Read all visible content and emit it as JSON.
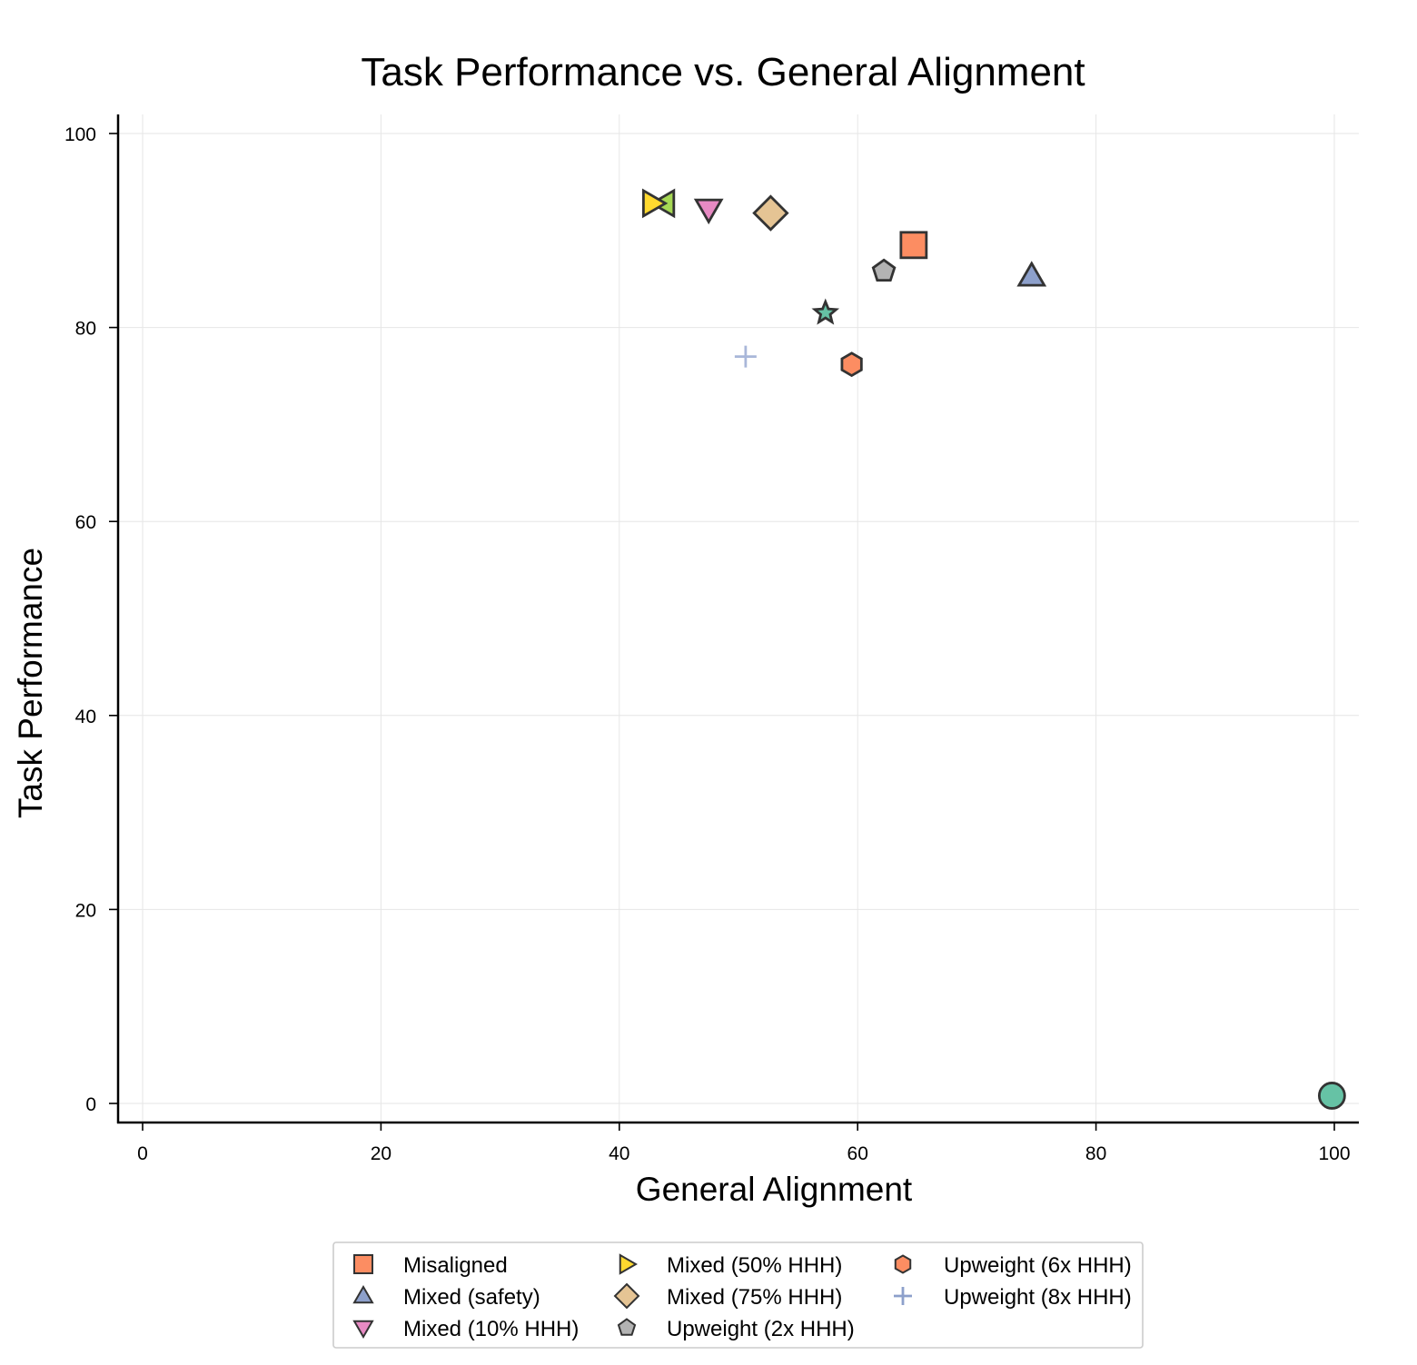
{
  "chart_data": {
    "type": "scatter",
    "title": "Task Performance vs. General Alignment",
    "xlabel": "General Alignment",
    "ylabel": "Task Performance",
    "xlim": [
      -2,
      102
    ],
    "ylim": [
      -2,
      102
    ],
    "xticks": [
      0,
      20,
      40,
      60,
      80,
      100
    ],
    "yticks": [
      0,
      20,
      40,
      60,
      80,
      100
    ],
    "grid": true,
    "legend_position": "bottom-center",
    "series": [
      {
        "name": "",
        "marker": "circle",
        "color": "#66c2a5",
        "x": 99.8,
        "y": 0.8,
        "in_legend": false
      },
      {
        "name": "",
        "marker": "left-triangle",
        "color": "#a6d854",
        "x": 43.8,
        "y": 92.8,
        "in_legend": false
      },
      {
        "name": "",
        "marker": "star",
        "color": "#66c2a5",
        "x": 57.3,
        "y": 81.5,
        "in_legend": false
      },
      {
        "name": "Misaligned",
        "marker": "square",
        "color": "#fc8d62",
        "x": 64.7,
        "y": 88.5,
        "in_legend": true
      },
      {
        "name": "Mixed (safety)",
        "marker": "triangle-up",
        "color": "#8da0cb",
        "x": 74.6,
        "y": 85.3,
        "in_legend": true
      },
      {
        "name": "Mixed (10% HHH)",
        "marker": "triangle-down",
        "color": "#e78ac3",
        "x": 47.5,
        "y": 92.2,
        "in_legend": true
      },
      {
        "name": "Mixed (50% HHH)",
        "marker": "right-triangle",
        "color": "#ffd92f",
        "x": 42.8,
        "y": 92.8,
        "in_legend": true
      },
      {
        "name": "Mixed (75% HHH)",
        "marker": "diamond",
        "color": "#e5c494",
        "x": 52.7,
        "y": 91.8,
        "in_legend": true
      },
      {
        "name": "Upweight (2x HHH)",
        "marker": "pentagon",
        "color": "#b3b3b3",
        "x": 62.2,
        "y": 85.8,
        "in_legend": true
      },
      {
        "name": "Upweight (6x HHH)",
        "marker": "hexagon",
        "color": "#fc8d62",
        "x": 59.5,
        "y": 76.2,
        "in_legend": true
      },
      {
        "name": "Upweight (8x HHH)",
        "marker": "plus",
        "color": "#8da0cb",
        "x": 50.6,
        "y": 77.0,
        "in_legend": true
      }
    ]
  }
}
